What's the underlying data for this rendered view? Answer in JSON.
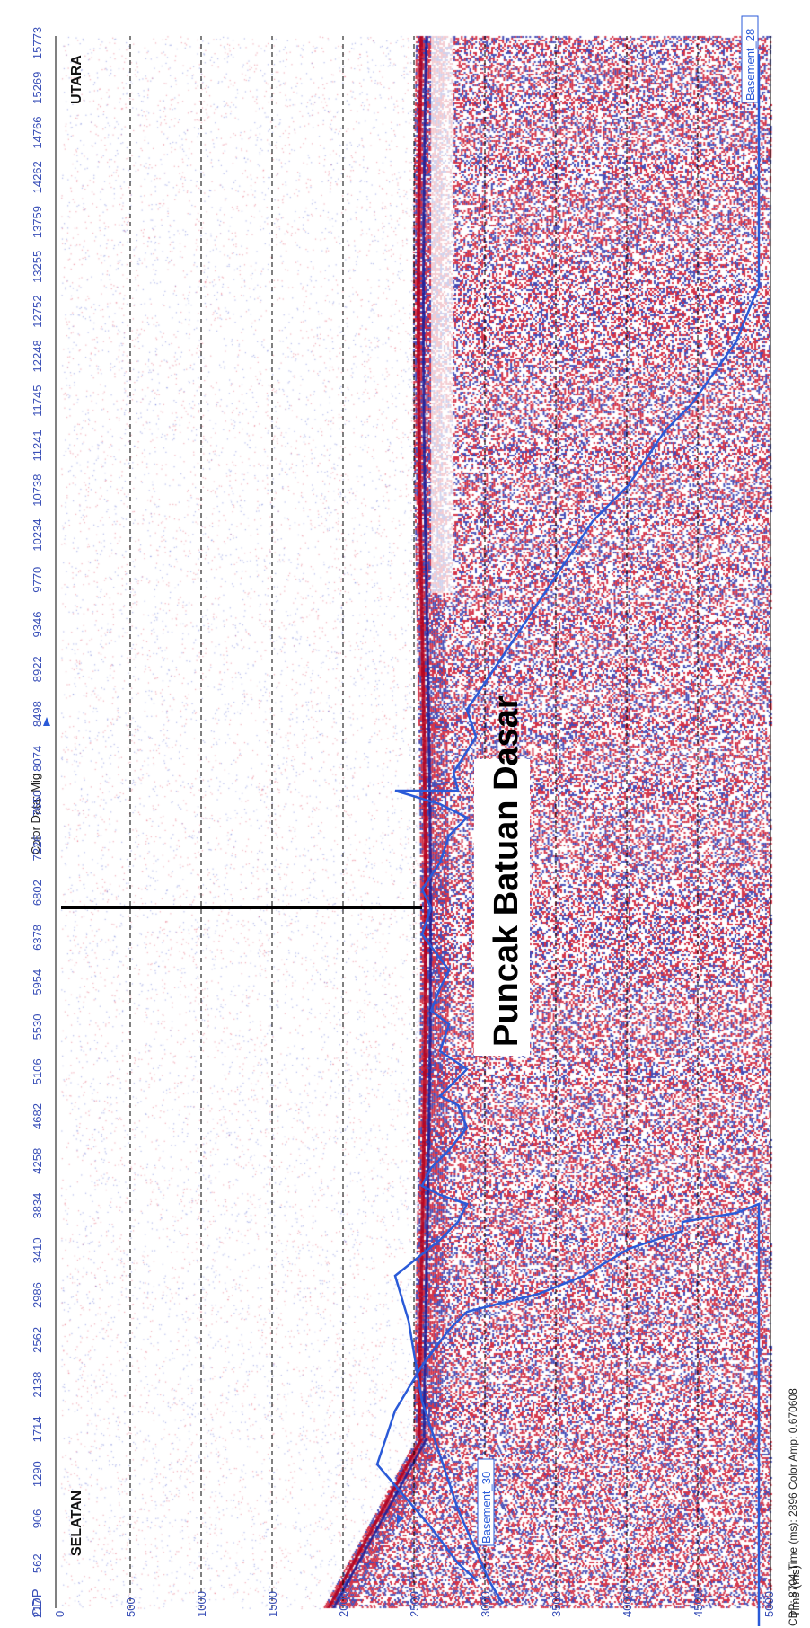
{
  "header": {
    "title": "Color Data: Mig"
  },
  "axes": {
    "cdp_label": "CDP",
    "cdp_ticks": [
      "217",
      "562",
      "906",
      "1290",
      "1714",
      "2138",
      "2562",
      "2986",
      "3410",
      "3834",
      "4258",
      "4682",
      "5106",
      "5530",
      "5954",
      "6378",
      "6802",
      "7226",
      "7650",
      "8074",
      "8498",
      "8922",
      "9346",
      "9770",
      "10234",
      "10738",
      "11241",
      "11745",
      "12248",
      "12752",
      "13255",
      "13759",
      "14262",
      "14766",
      "15269",
      "15773"
    ],
    "time_label": "Time (ms)",
    "time_ticks": [
      "0",
      "500",
      "1000",
      "1500",
      "2000",
      "2500",
      "3000",
      "3500",
      "4000",
      "4500",
      "5000"
    ]
  },
  "annotations": {
    "south_label": "SELATAN",
    "north_label": "UTARA",
    "horizon_main": "Puncak Batuan Dasar",
    "horizon_left_label": "Basement_30",
    "horizon_right_label": "Basement_28"
  },
  "status": {
    "readout": "CDP: 8704  Time (ms): 2896  Color Amp: 0.670608"
  },
  "colors": {
    "positive_amp": "#d0102a",
    "negative_amp": "#1e2fb0",
    "horizon_line": "#2a5ad8",
    "axis_text": "#3a50b8",
    "grid": "#000000"
  }
}
